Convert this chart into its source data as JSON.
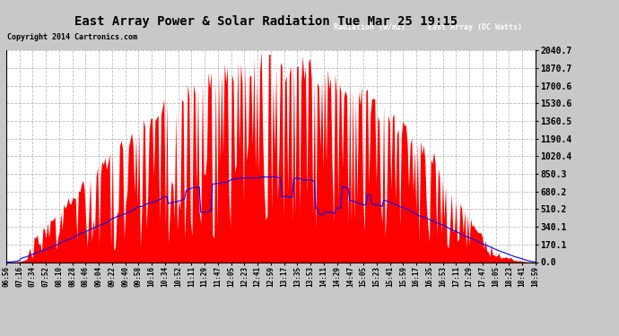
{
  "title": "East Array Power & Solar Radiation Tue Mar 25 19:15",
  "copyright_text": "Copyright 2014 Cartronics.com",
  "legend_radiation": "Radiation (w/m2)",
  "legend_east": "East Array (DC Watts)",
  "background_color": "#c8c8c8",
  "plot_bg_color": "#ffffff",
  "grid_color": "#aaaaaa",
  "yticks": [
    0.0,
    170.1,
    340.1,
    510.2,
    680.2,
    850.3,
    1020.4,
    1190.4,
    1360.5,
    1530.6,
    1700.6,
    1870.7,
    2040.7
  ],
  "ymax": 2040.7,
  "ymin": 0.0,
  "xtick_labels": [
    "06:56",
    "07:16",
    "07:34",
    "07:52",
    "08:10",
    "08:28",
    "08:46",
    "09:04",
    "09:22",
    "09:40",
    "09:58",
    "10:16",
    "10:34",
    "10:52",
    "11:11",
    "11:29",
    "11:47",
    "12:05",
    "12:23",
    "12:41",
    "12:59",
    "13:17",
    "13:35",
    "13:53",
    "14:11",
    "14:29",
    "14:47",
    "15:05",
    "15:23",
    "15:41",
    "15:59",
    "16:17",
    "16:35",
    "16:53",
    "17:11",
    "17:29",
    "17:47",
    "18:05",
    "18:23",
    "18:41",
    "18:59"
  ]
}
